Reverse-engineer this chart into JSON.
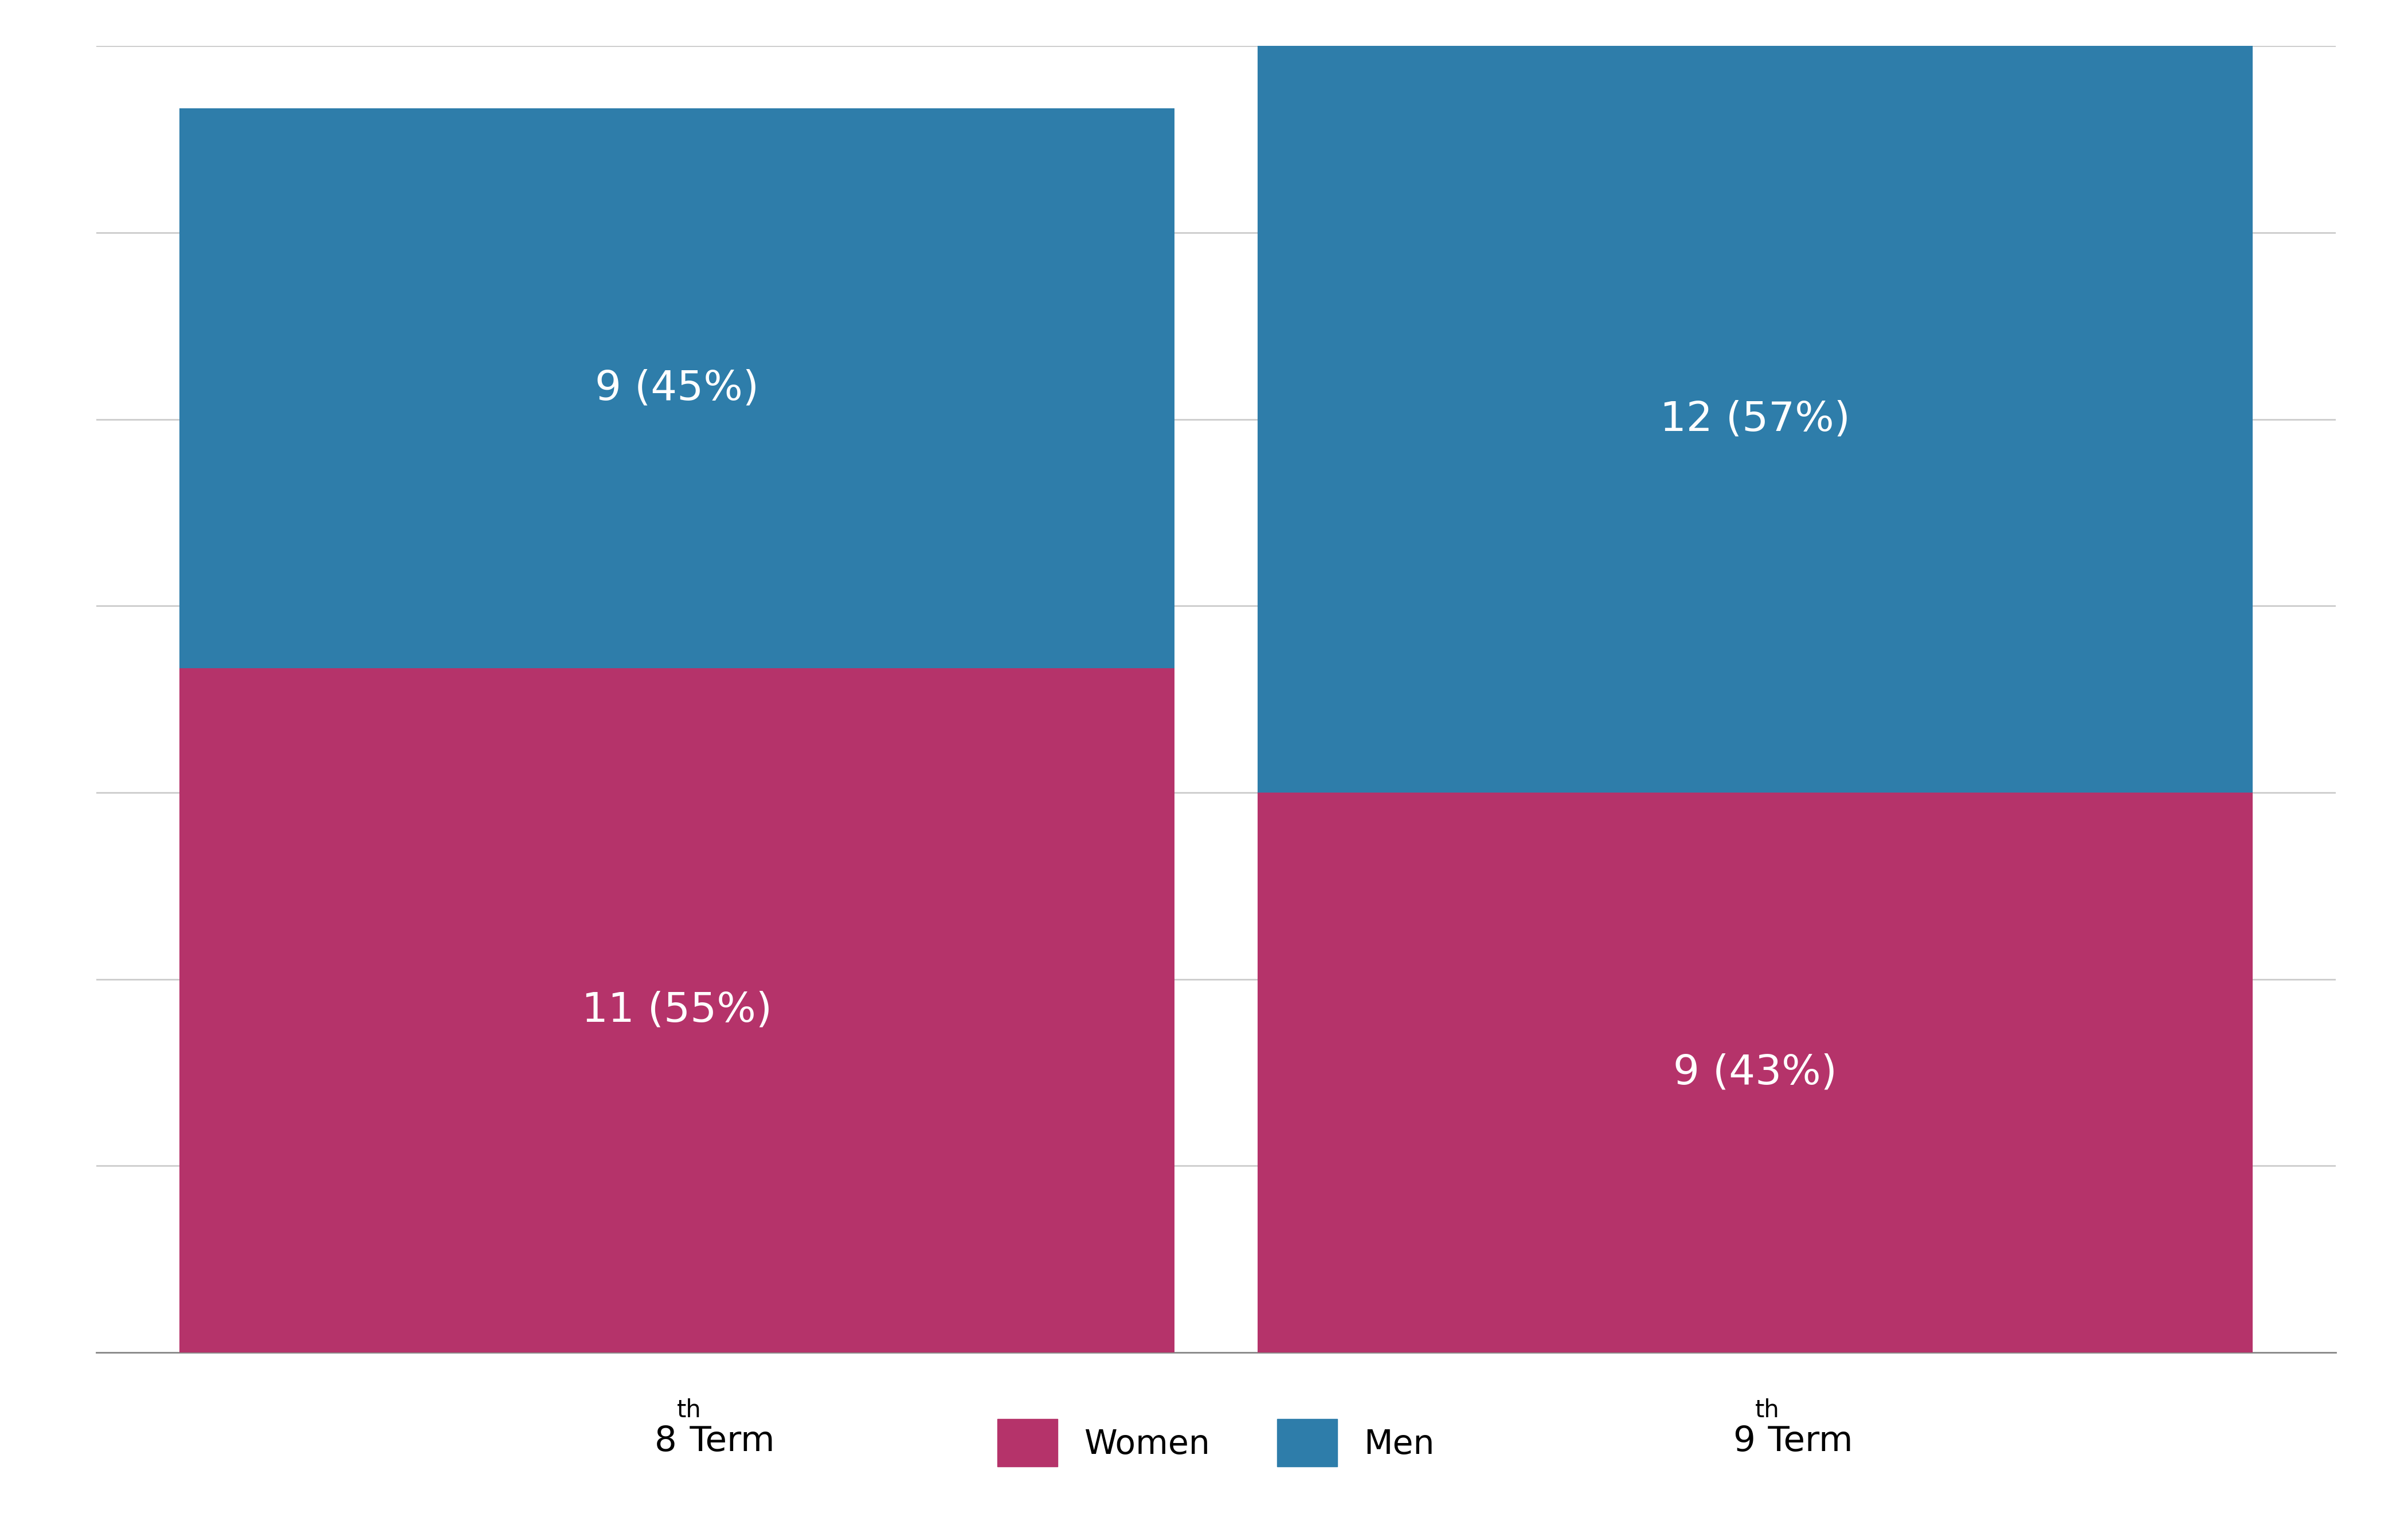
{
  "categories": [
    "8",
    "9"
  ],
  "cat_superscripts": [
    "th",
    "th"
  ],
  "cat_suffixes": [
    " Term",
    " Term"
  ],
  "women_values": [
    11,
    9
  ],
  "men_values": [
    9,
    12
  ],
  "women_labels": [
    "11 (55%)",
    "9 (43%)"
  ],
  "men_labels": [
    "9 (45%)",
    "12 (57%)"
  ],
  "women_color": "#b5336a",
  "men_color": "#2e7daa",
  "background_color": "#ffffff",
  "grid_color": "#cccccc",
  "text_color": "#ffffff",
  "label_fontsize": 52,
  "tick_fontsize": 44,
  "sup_fontsize": 30,
  "legend_fontsize": 42,
  "bar_width": 0.6,
  "x_positions": [
    0.35,
    1.0
  ],
  "xlim": [
    0.0,
    1.35
  ],
  "ylim": [
    0,
    21
  ],
  "ytick_interval": 3,
  "legend_marker_size": 40
}
